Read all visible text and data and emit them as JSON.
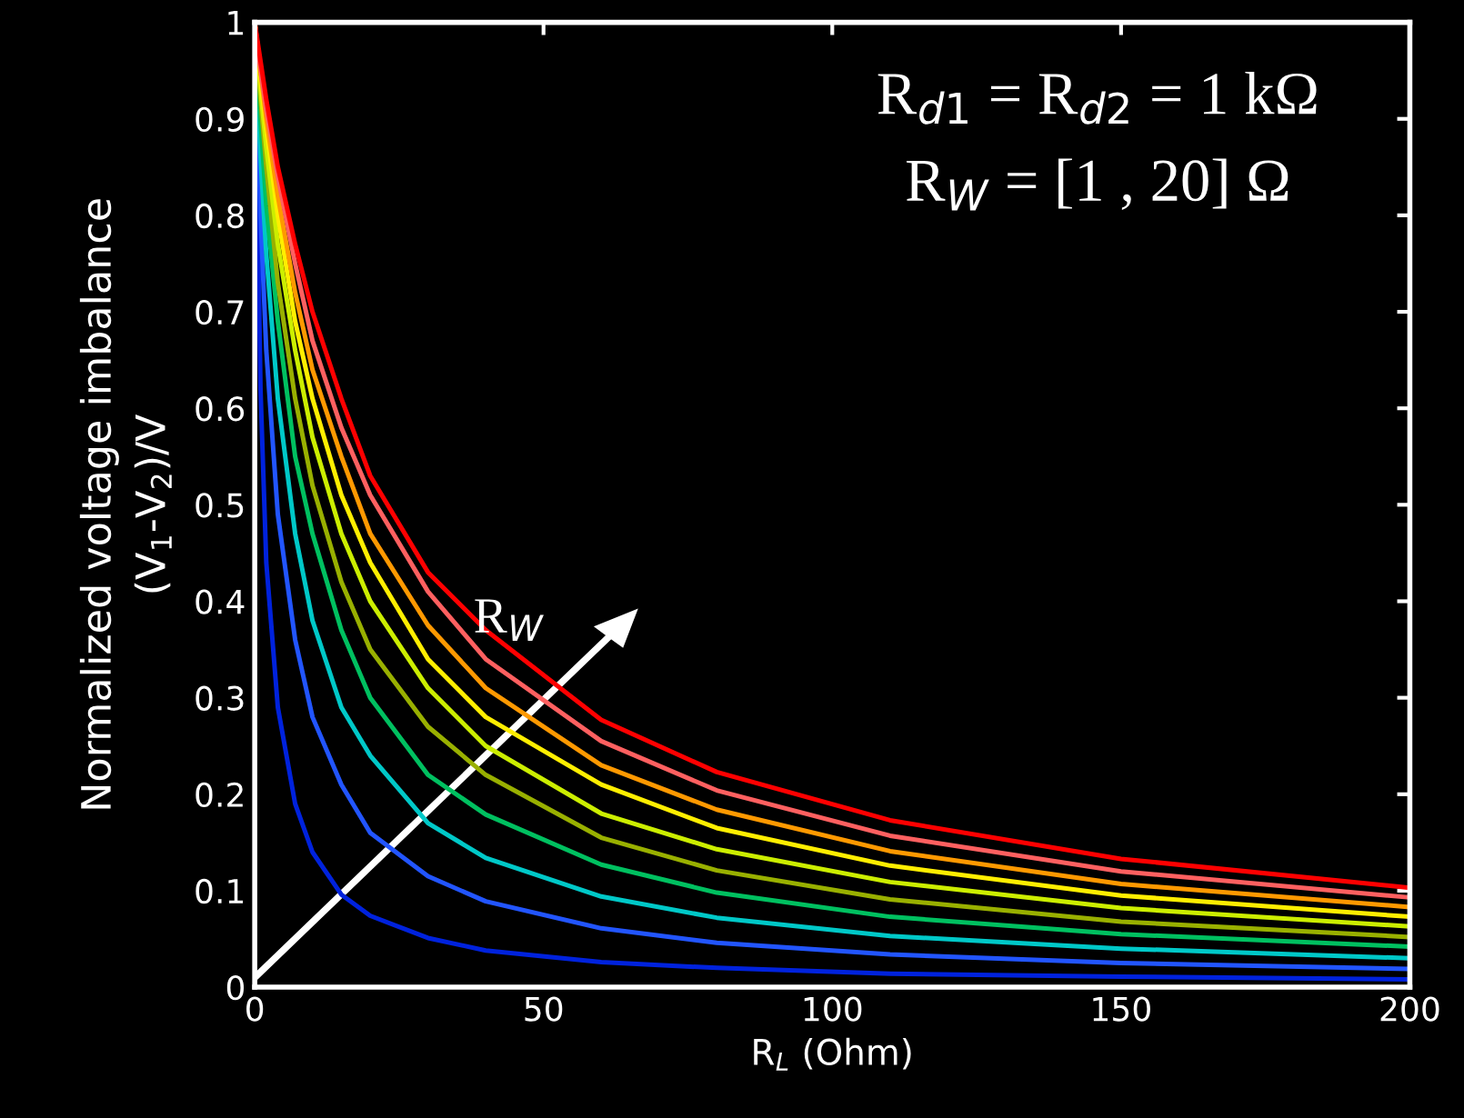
{
  "chart_data": {
    "type": "line",
    "xlabel": "R$_{L}$ (Ohm)",
    "ylabel": "Normalized voltage imbalance\n(V$_{1}$-V$_{2}$)/V",
    "x": [
      0,
      1,
      2,
      4,
      7,
      10,
      15,
      20,
      30,
      40,
      60,
      80,
      110,
      150,
      200
    ],
    "series": [
      {
        "color": "#0022dd",
        "values": [
          1,
          0.62,
          0.44,
          0.29,
          0.19,
          0.14,
          0.096,
          0.074,
          0.051,
          0.038,
          0.026,
          0.02,
          0.014,
          0.011,
          0.008
        ]
      },
      {
        "color": "#2255ff",
        "values": [
          1,
          0.8,
          0.66,
          0.49,
          0.36,
          0.28,
          0.21,
          0.16,
          0.115,
          0.089,
          0.061,
          0.046,
          0.034,
          0.025,
          0.019
        ]
      },
      {
        "color": "#00c8c8",
        "values": [
          1,
          0.86,
          0.76,
          0.61,
          0.47,
          0.38,
          0.29,
          0.24,
          0.17,
          0.134,
          0.094,
          0.072,
          0.053,
          0.04,
          0.03
        ]
      },
      {
        "color": "#00c060",
        "values": [
          1,
          0.9,
          0.81,
          0.69,
          0.55,
          0.47,
          0.37,
          0.3,
          0.22,
          0.179,
          0.127,
          0.098,
          0.073,
          0.055,
          0.042
        ]
      },
      {
        "color": "#99b000",
        "values": [
          1,
          0.92,
          0.85,
          0.73,
          0.61,
          0.52,
          0.42,
          0.35,
          0.27,
          0.22,
          0.155,
          0.121,
          0.091,
          0.068,
          0.052
        ]
      },
      {
        "color": "#ccee00",
        "values": [
          1,
          0.93,
          0.87,
          0.77,
          0.66,
          0.57,
          0.47,
          0.4,
          0.31,
          0.25,
          0.18,
          0.143,
          0.109,
          0.082,
          0.063
        ]
      },
      {
        "color": "#ffee00",
        "values": [
          1,
          0.94,
          0.89,
          0.8,
          0.69,
          0.61,
          0.51,
          0.44,
          0.34,
          0.28,
          0.21,
          0.165,
          0.126,
          0.095,
          0.073
        ]
      },
      {
        "color": "#ff9900",
        "values": [
          1,
          0.95,
          0.9,
          0.82,
          0.72,
          0.64,
          0.55,
          0.47,
          0.375,
          0.31,
          0.23,
          0.184,
          0.141,
          0.107,
          0.083
        ]
      },
      {
        "color": "#ff6060",
        "values": [
          1,
          0.95,
          0.91,
          0.84,
          0.75,
          0.67,
          0.58,
          0.51,
          0.41,
          0.34,
          0.255,
          0.204,
          0.157,
          0.12,
          0.093
        ]
      },
      {
        "color": "#ff0000",
        "values": [
          1,
          0.96,
          0.92,
          0.85,
          0.77,
          0.7,
          0.61,
          0.53,
          0.43,
          0.37,
          0.277,
          0.223,
          0.173,
          0.133,
          0.103
        ]
      }
    ],
    "annotations": [
      "R$_{d1}$ = R$_{d2}$ = 1 kΩ",
      "R$_{W}$ = [1 , 20] Ω",
      "R$_{W}$"
    ],
    "xlim": [
      0,
      200
    ],
    "xticks": [
      0,
      50,
      100,
      150,
      200
    ],
    "ylim": [
      0,
      1
    ],
    "yticks": [
      0,
      0.1,
      0.2,
      0.3,
      0.4,
      0.5,
      0.6,
      0.7,
      0.8,
      0.9,
      1
    ],
    "grid": false,
    "legend": false,
    "marker": "none",
    "line_style": "solid"
  }
}
